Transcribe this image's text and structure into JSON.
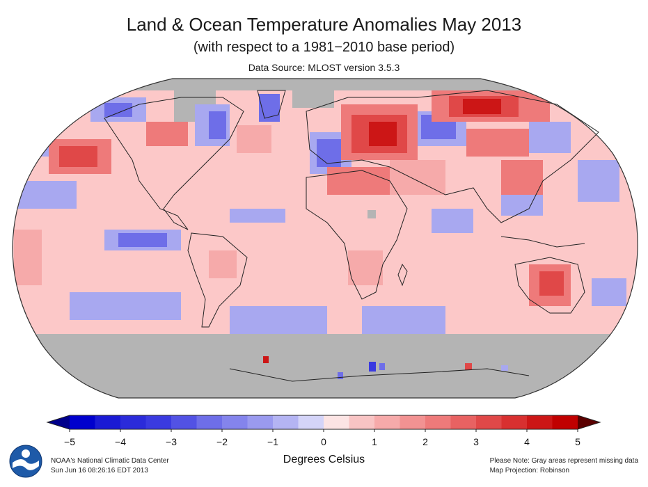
{
  "header": {
    "title": "Land & Ocean Temperature Anomalies May 2013",
    "subtitle": "(with respect to a 1981−2010 base period)",
    "source": "Data Source: MLOST version 3.5.3"
  },
  "legend": {
    "ticks": [
      "−5",
      "−4",
      "−3",
      "−2",
      "−1",
      "0",
      "1",
      "2",
      "3",
      "4",
      "5"
    ],
    "tick_values": [
      -5,
      -4,
      -3,
      -2,
      -1,
      0,
      1,
      2,
      3,
      4,
      5
    ],
    "units": "Degrees Celsius",
    "colors": {
      "neg5": "#00008b",
      "neg4": "#0000cd",
      "neg3": "#3a3ae0",
      "neg2": "#6e6ee8",
      "neg1": "#a8a8f0",
      "neg0": "#d8d8f8",
      "pos0": "#fcd2d2",
      "pos1": "#f6aaaa",
      "pos2": "#ee7a7a",
      "pos3": "#e04848",
      "pos4": "#cc1616",
      "pos5": "#5a0000"
    }
  },
  "map": {
    "projection": "Robinson",
    "missing_color": "#b4b4b4",
    "ocean_base": "#fcc8c8",
    "region_labels": []
  },
  "footer": {
    "credit_line1": "NOAA's National Climatic Data Center",
    "credit_line2": "Sun Jun 16 08:26:16 EDT 2013",
    "note_line1": "Please Note: Gray areas represent missing data",
    "note_line2": "Map Projection: Robinson"
  }
}
